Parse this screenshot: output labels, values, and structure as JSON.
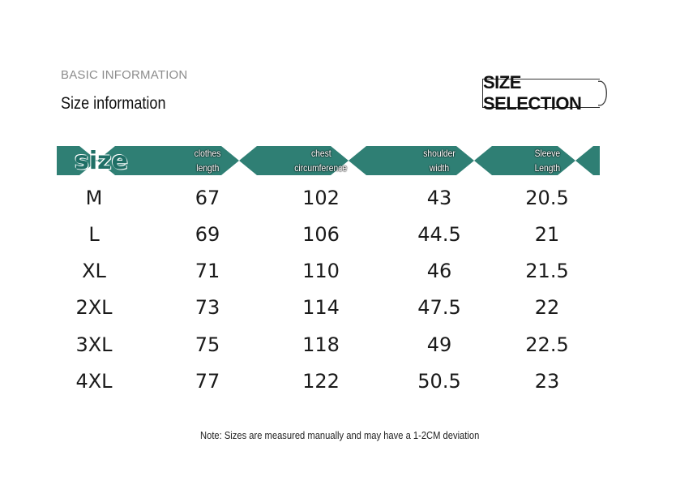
{
  "header": {
    "eyebrow": "BASIC INFORMATION",
    "title": "Size information",
    "badge": "SIZE SELECTION"
  },
  "table": {
    "accent_color": "#2f7f74",
    "size_label": "size",
    "columns": [
      [
        "clothes",
        "length"
      ],
      [
        "chest",
        "circumference"
      ],
      [
        "shoulder",
        "width"
      ],
      [
        "Sleeve",
        "Length"
      ]
    ],
    "rows": [
      {
        "size": "M",
        "values": [
          "67",
          "102",
          "43",
          "20.5"
        ]
      },
      {
        "size": "L",
        "values": [
          "69",
          "106",
          "44.5",
          "21"
        ]
      },
      {
        "size": "XL",
        "values": [
          "71",
          "110",
          "46",
          "21.5"
        ]
      },
      {
        "size": "2XL",
        "values": [
          "73",
          "114",
          "47.5",
          "22"
        ]
      },
      {
        "size": "3XL",
        "values": [
          "75",
          "118",
          "49",
          "22.5"
        ]
      },
      {
        "size": "4XL",
        "values": [
          "77",
          "122",
          "50.5",
          "23"
        ]
      }
    ]
  },
  "note": "Note: Sizes are measured manually and may have a 1-2CM deviation"
}
